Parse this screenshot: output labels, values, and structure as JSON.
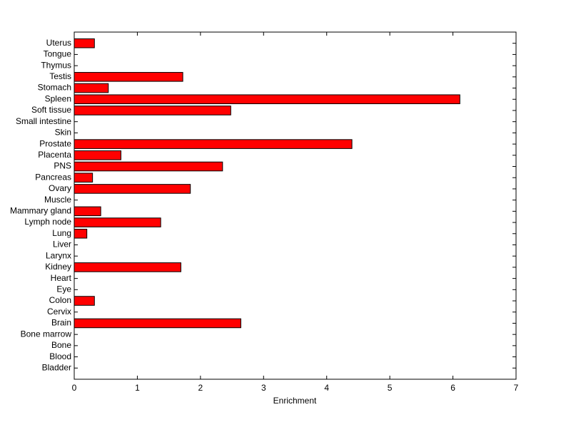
{
  "chart_data": {
    "type": "barh",
    "xlabel": "Enrichment",
    "categories": [
      "Uterus",
      "Tongue",
      "Thymus",
      "Testis",
      "Stomach",
      "Spleen",
      "Soft tissue",
      "Small intestine",
      "Skin",
      "Prostate",
      "Placenta",
      "PNS",
      "Pancreas",
      "Ovary",
      "Muscle",
      "Mammary gland",
      "Lymph node",
      "Lung",
      "Liver",
      "Larynx",
      "Kidney",
      "Heart",
      "Eye",
      "Colon",
      "Cervix",
      "Brain",
      "Bone marrow",
      "Bone",
      "Blood",
      "Bladder"
    ],
    "values": [
      0.32,
      0,
      0,
      1.72,
      0.54,
      6.11,
      2.48,
      0,
      0,
      4.4,
      0.74,
      2.35,
      0.29,
      1.84,
      0,
      0.42,
      1.37,
      0.2,
      0,
      0,
      1.69,
      0,
      0,
      0.32,
      0,
      2.64,
      0,
      0,
      0,
      0
    ],
    "color": "#ff0000",
    "xlim": [
      0,
      7
    ],
    "xticks": [
      0,
      1,
      2,
      3,
      4,
      5,
      6,
      7
    ]
  }
}
